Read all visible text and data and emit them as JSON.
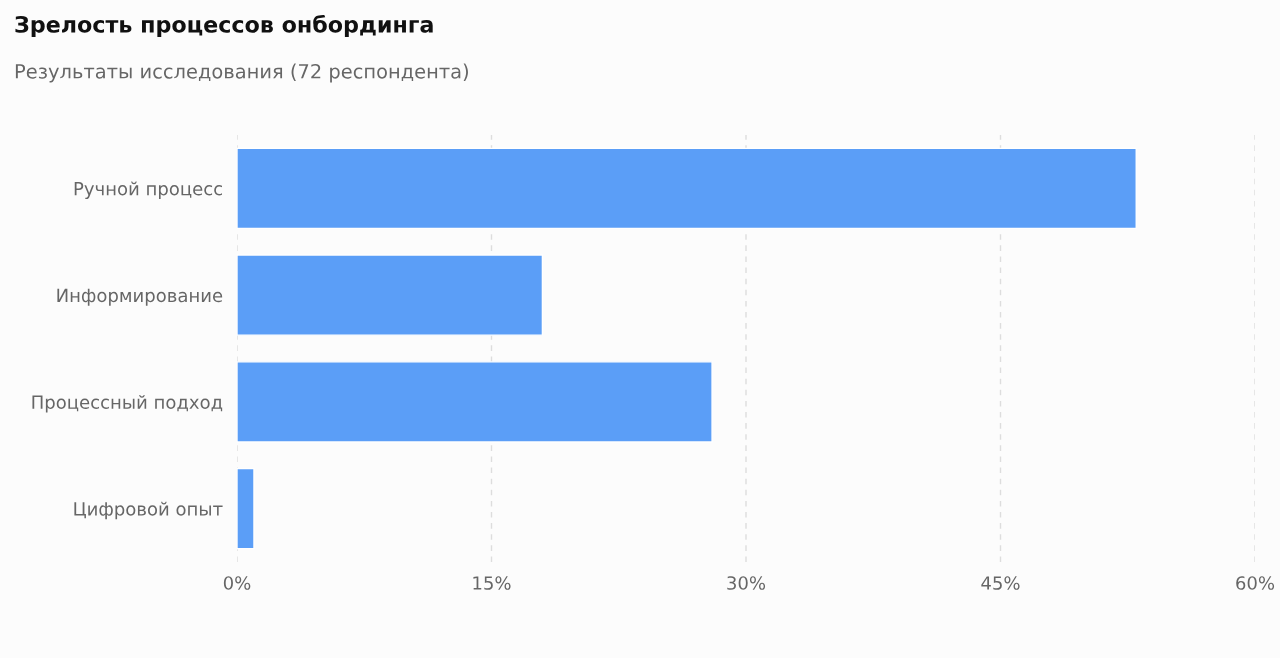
{
  "chart_data": {
    "type": "bar",
    "orientation": "horizontal",
    "title": "Зрелость процессов онбординга",
    "subtitle": "Результаты исследования (72 респондента)",
    "categories": [
      "Ручной процесс",
      "Информирование",
      "Процессный подход",
      "Цифровой опыт"
    ],
    "values": [
      53,
      18,
      28,
      1
    ],
    "color": "#5b9ef7",
    "xlim": [
      0,
      60
    ],
    "xticks": [
      {
        "value": 0,
        "label": "0%"
      },
      {
        "value": 15,
        "label": "15%"
      },
      {
        "value": 30,
        "label": "30%"
      },
      {
        "value": 45,
        "label": "45%"
      },
      {
        "value": 60,
        "label": "60%"
      }
    ],
    "grid": "x"
  }
}
